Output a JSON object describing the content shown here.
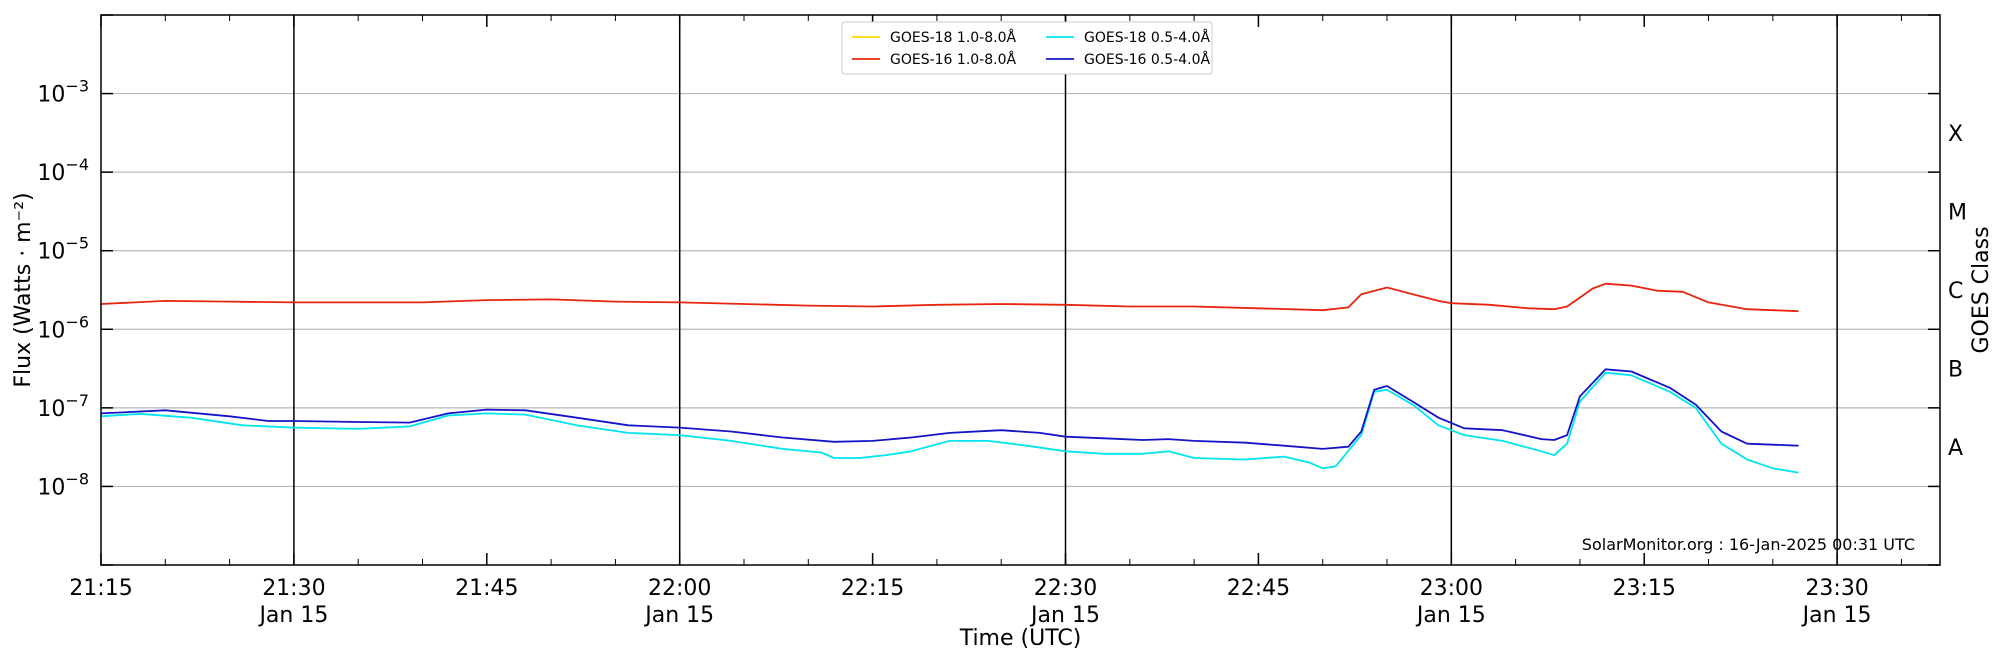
{
  "chart_data": {
    "type": "line",
    "title": "",
    "xlabel": "Time (UTC)",
    "ylabel": "Flux (Watts · m⁻²)",
    "ylabel_right": "GOES Class",
    "y_scale": "log",
    "ylim": [
      1e-09,
      0.01
    ],
    "xlim": [
      "21:15",
      "23:38"
    ],
    "x_ticks": [
      {
        "time": "21:15",
        "label": "21:15",
        "sub": ""
      },
      {
        "time": "21:30",
        "label": "21:30",
        "sub": "Jan 15"
      },
      {
        "time": "21:45",
        "label": "21:45",
        "sub": ""
      },
      {
        "time": "22:00",
        "label": "22:00",
        "sub": "Jan 15"
      },
      {
        "time": "22:15",
        "label": "22:15",
        "sub": ""
      },
      {
        "time": "22:30",
        "label": "22:30",
        "sub": "Jan 15"
      },
      {
        "time": "22:45",
        "label": "22:45",
        "sub": ""
      },
      {
        "time": "23:00",
        "label": "23:00",
        "sub": "Jan 15"
      },
      {
        "time": "23:15",
        "label": "23:15",
        "sub": ""
      },
      {
        "time": "23:30",
        "label": "23:30",
        "sub": "Jan 15"
      }
    ],
    "vertical_lines": [
      "21:30",
      "22:00",
      "22:30",
      "23:00",
      "23:30"
    ],
    "y_ticks": [
      {
        "exp": -3,
        "base": "10",
        "sup": "−3"
      },
      {
        "exp": -4,
        "base": "10",
        "sup": "−4"
      },
      {
        "exp": -5,
        "base": "10",
        "sup": "−5"
      },
      {
        "exp": -6,
        "base": "10",
        "sup": "−6"
      },
      {
        "exp": -7,
        "base": "10",
        "sup": "−7"
      },
      {
        "exp": -8,
        "base": "10",
        "sup": "−8"
      }
    ],
    "grid_y": [
      -3,
      -4,
      -5,
      -6,
      -7,
      -8
    ],
    "goes_classes": [
      {
        "label": "X",
        "exp": -3.5
      },
      {
        "label": "M",
        "exp": -4.5
      },
      {
        "label": "C",
        "exp": -5.5
      },
      {
        "label": "B",
        "exp": -6.5
      },
      {
        "label": "A",
        "exp": -7.5
      }
    ],
    "legend_position": "top-center",
    "credit": "SolarMonitor.org : 16-Jan-2025 00:31 UTC",
    "series": [
      {
        "name": "GOES-18 1.0-8.0Å",
        "color": "#ffd700",
        "x": [],
        "y": []
      },
      {
        "name": "GOES-16 1.0-8.0Å",
        "color": "#e8240c",
        "x": [
          "21:15",
          "21:20",
          "21:25",
          "21:30",
          "21:35",
          "21:40",
          "21:45",
          "21:50",
          "21:55",
          "22:00",
          "22:05",
          "22:10",
          "22:15",
          "22:20",
          "22:25",
          "22:30",
          "22:35",
          "22:40",
          "22:45",
          "22:50",
          "22:52",
          "22:53",
          "22:55",
          "22:57",
          "22:59",
          "23:00",
          "23:03",
          "23:06",
          "23:08",
          "23:09",
          "23:11",
          "23:12",
          "23:14",
          "23:16",
          "23:18",
          "23:20",
          "23:23",
          "23:27"
        ],
        "y": [
          2.1e-06,
          2.3e-06,
          2.25e-06,
          2.2e-06,
          2.2e-06,
          2.2e-06,
          2.35e-06,
          2.4e-06,
          2.25e-06,
          2.2e-06,
          2.1e-06,
          2e-06,
          1.95e-06,
          2.05e-06,
          2.1e-06,
          2.05e-06,
          1.95e-06,
          1.95e-06,
          1.85e-06,
          1.75e-06,
          1.9e-06,
          2.8e-06,
          3.4e-06,
          2.8e-06,
          2.3e-06,
          2.15e-06,
          2.05e-06,
          1.85e-06,
          1.8e-06,
          1.95e-06,
          3.3e-06,
          3.8e-06,
          3.6e-06,
          3.1e-06,
          3e-06,
          2.2e-06,
          1.8e-06,
          1.7e-06
        ]
      },
      {
        "name": "GOES-18 0.5-4.0Å",
        "color": "#00e5ee",
        "x": [
          "21:15",
          "21:18",
          "21:22",
          "21:26",
          "21:30",
          "21:35",
          "21:39",
          "21:42",
          "21:45",
          "21:48",
          "21:52",
          "21:56",
          "22:00",
          "22:04",
          "22:08",
          "22:11",
          "22:12",
          "22:14",
          "22:16",
          "22:18",
          "22:21",
          "22:24",
          "22:27",
          "22:30",
          "22:33",
          "22:36",
          "22:38",
          "22:40",
          "22:44",
          "22:47",
          "22:49",
          "22:50",
          "22:51",
          "22:53",
          "22:54",
          "22:55",
          "22:57",
          "22:59",
          "23:01",
          "23:04",
          "23:07",
          "23:08",
          "23:09",
          "23:10",
          "23:12",
          "23:14",
          "23:17",
          "23:19",
          "23:21",
          "23:23",
          "23:25",
          "23:27"
        ],
        "y": [
          7.8e-08,
          8.4e-08,
          7.5e-08,
          6e-08,
          5.6e-08,
          5.4e-08,
          5.8e-08,
          8e-08,
          8.5e-08,
          8.2e-08,
          6e-08,
          4.8e-08,
          4.5e-08,
          3.8e-08,
          3e-08,
          2.7e-08,
          2.3e-08,
          2.3e-08,
          2.5e-08,
          2.8e-08,
          3.8e-08,
          3.8e-08,
          3.3e-08,
          2.8e-08,
          2.6e-08,
          2.6e-08,
          2.8e-08,
          2.3e-08,
          2.2e-08,
          2.4e-08,
          2e-08,
          1.7e-08,
          1.8e-08,
          4.5e-08,
          1.6e-07,
          1.7e-07,
          1.1e-07,
          6e-08,
          4.5e-08,
          3.8e-08,
          2.8e-08,
          2.5e-08,
          3.5e-08,
          1.2e-07,
          2.8e-07,
          2.6e-07,
          1.6e-07,
          1e-07,
          3.5e-08,
          2.2e-08,
          1.7e-08,
          1.5e-08
        ]
      },
      {
        "name": "GOES-16 0.5-4.0Å",
        "color": "#1414c8",
        "x": [
          "21:15",
          "21:20",
          "21:25",
          "21:28",
          "21:30",
          "21:35",
          "21:39",
          "21:42",
          "21:45",
          "21:48",
          "21:52",
          "21:56",
          "22:00",
          "22:04",
          "22:08",
          "22:12",
          "22:15",
          "22:18",
          "22:21",
          "22:25",
          "22:28",
          "22:30",
          "22:33",
          "22:36",
          "22:38",
          "22:40",
          "22:44",
          "22:47",
          "22:50",
          "22:52",
          "22:53",
          "22:54",
          "22:55",
          "22:57",
          "22:59",
          "23:01",
          "23:04",
          "23:07",
          "23:08",
          "23:09",
          "23:10",
          "23:12",
          "23:14",
          "23:17",
          "23:19",
          "23:21",
          "23:23",
          "23:27"
        ],
        "y": [
          8.5e-08,
          9.3e-08,
          7.8e-08,
          6.8e-08,
          6.8e-08,
          6.6e-08,
          6.5e-08,
          8.5e-08,
          9.5e-08,
          9.3e-08,
          7.5e-08,
          6e-08,
          5.6e-08,
          5e-08,
          4.2e-08,
          3.7e-08,
          3.8e-08,
          4.2e-08,
          4.8e-08,
          5.2e-08,
          4.8e-08,
          4.3e-08,
          4.1e-08,
          3.9e-08,
          4e-08,
          3.8e-08,
          3.6e-08,
          3.3e-08,
          3e-08,
          3.2e-08,
          5e-08,
          1.7e-07,
          1.9e-07,
          1.2e-07,
          7.5e-08,
          5.5e-08,
          5.2e-08,
          4e-08,
          3.9e-08,
          4.5e-08,
          1.4e-07,
          3.1e-07,
          2.9e-07,
          1.8e-07,
          1.1e-07,
          5e-08,
          3.5e-08,
          3.3e-08
        ]
      }
    ]
  }
}
